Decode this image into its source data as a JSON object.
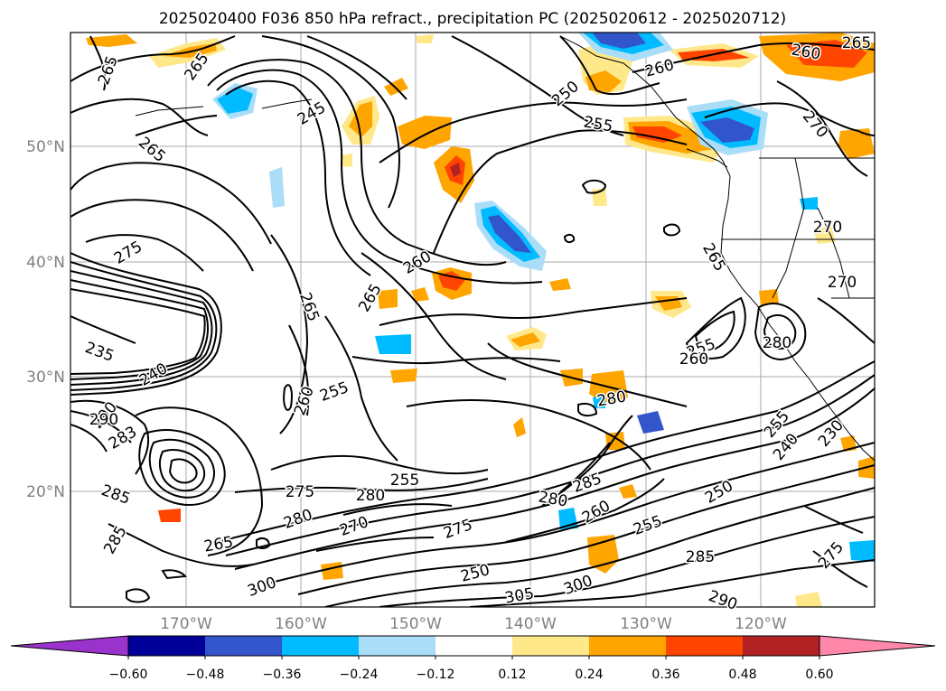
{
  "title": "2025020400 F036 850 hPa refract., precipitation PC (2025020612 - 2025020712)",
  "lat_labels": [
    "50°N",
    "40°N",
    "30°N",
    "20°N"
  ],
  "lon_labels": [
    "170°W",
    "160°W",
    "150°W",
    "140°W",
    "130°W",
    "120°W"
  ],
  "colorbar": {
    "ticks": [
      "−0.60",
      "−0.48",
      "−0.36",
      "−0.24",
      "−0.12",
      "0.12",
      "0.24",
      "0.36",
      "0.48",
      "0.60"
    ],
    "colors": [
      "#9933cc",
      "#000099",
      "#3355cc",
      "#00bbff",
      "#aaddf8",
      "#ffffff",
      "#ffe88a",
      "#ffa500",
      "#ff4500",
      "#b22222",
      "#ff88aa"
    ]
  },
  "contour_labels": [
    {
      "text": "265"
    },
    {
      "text": "265"
    },
    {
      "text": "265"
    },
    {
      "text": "245"
    },
    {
      "text": "250"
    },
    {
      "text": "260"
    },
    {
      "text": "255"
    },
    {
      "text": "260"
    },
    {
      "text": "265"
    },
    {
      "text": "270"
    },
    {
      "text": "270"
    },
    {
      "text": "275"
    },
    {
      "text": "260"
    },
    {
      "text": "265"
    },
    {
      "text": "265"
    },
    {
      "text": "270"
    },
    {
      "text": "235"
    },
    {
      "text": "240"
    },
    {
      "text": "255"
    },
    {
      "text": "260"
    },
    {
      "text": "255"
    },
    {
      "text": "255"
    },
    {
      "text": "260"
    },
    {
      "text": "280"
    },
    {
      "text": "290"
    },
    {
      "text": "283"
    },
    {
      "text": "285"
    },
    {
      "text": "275"
    },
    {
      "text": "280"
    },
    {
      "text": "265"
    },
    {
      "text": "285"
    },
    {
      "text": "270"
    },
    {
      "text": "280"
    },
    {
      "text": "280"
    },
    {
      "text": "285"
    },
    {
      "text": "260"
    },
    {
      "text": "275"
    },
    {
      "text": "255"
    },
    {
      "text": "250"
    },
    {
      "text": "300"
    },
    {
      "text": "305"
    },
    {
      "text": "300"
    },
    {
      "text": "250"
    },
    {
      "text": "255"
    },
    {
      "text": "285"
    },
    {
      "text": "240"
    },
    {
      "text": "230"
    },
    {
      "text": "275"
    },
    {
      "text": "280"
    },
    {
      "text": "290"
    },
    {
      "text": "290"
    },
    {
      "text": "265"
    }
  ]
}
